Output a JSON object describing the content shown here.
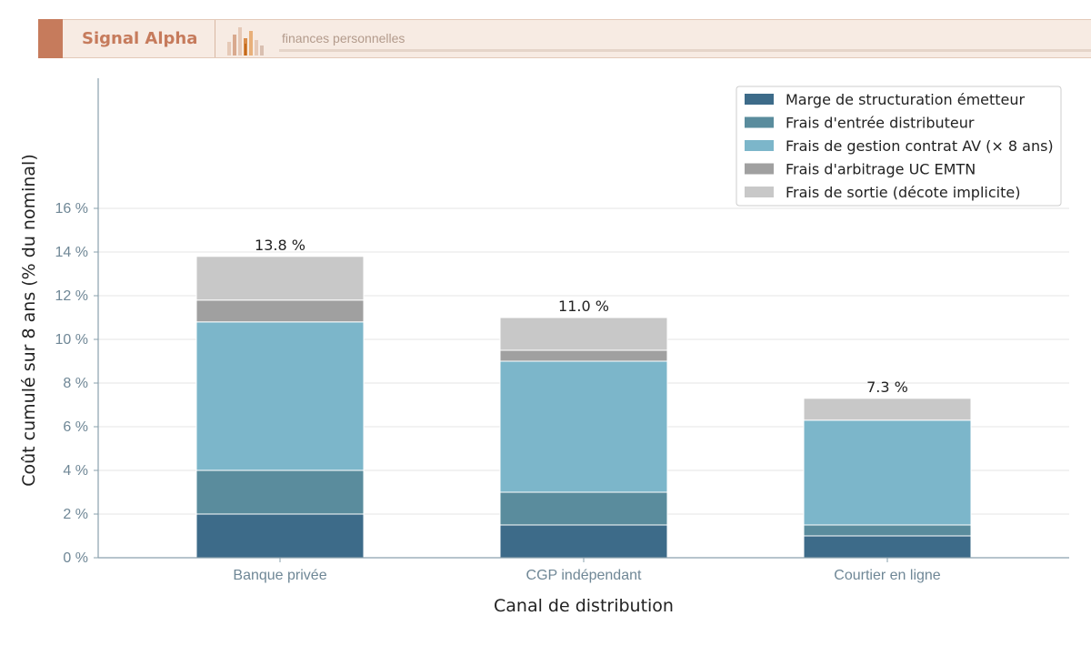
{
  "header": {
    "brand": "Signal Alpha",
    "tagline": "finances personnelles"
  },
  "chart_data": {
    "type": "bar",
    "stacked": true,
    "categories": [
      "Banque privée",
      "CGP indépendant",
      "Courtier en ligne"
    ],
    "series": [
      {
        "name": "Marge de structuration émetteur",
        "color": "#3d6b89",
        "values": [
          2.0,
          1.5,
          1.0
        ]
      },
      {
        "name": "Frais d'entrée distributeur",
        "color": "#5a8c9d",
        "values": [
          2.0,
          1.5,
          0.5
        ]
      },
      {
        "name": "Frais de gestion contrat AV (× 8 ans)",
        "color": "#7cb6ca",
        "values": [
          6.8,
          6.0,
          4.8
        ]
      },
      {
        "name": "Frais d'arbitrage UC EMTN",
        "color": "#a0a0a0",
        "values": [
          1.0,
          0.5,
          0.0
        ]
      },
      {
        "name": "Frais de sortie (décote implicite)",
        "color": "#c8c8c8",
        "values": [
          2.0,
          1.5,
          1.0
        ]
      }
    ],
    "totals": [
      "13.8 %",
      "11.0 %",
      "7.3 %"
    ],
    "xlabel": "Canal de distribution",
    "ylabel": "Coût cumulé sur 8 ans (% du nominal)",
    "ylim": [
      0,
      16
    ],
    "yticks": [
      0,
      2,
      4,
      6,
      8,
      10,
      12,
      14,
      16
    ],
    "ytick_labels": [
      "0 %",
      "2 %",
      "4 %",
      "6 %",
      "8 %",
      "10 %",
      "12 %",
      "14 %",
      "16 %"
    ],
    "grid": true,
    "legend": "top-right"
  }
}
